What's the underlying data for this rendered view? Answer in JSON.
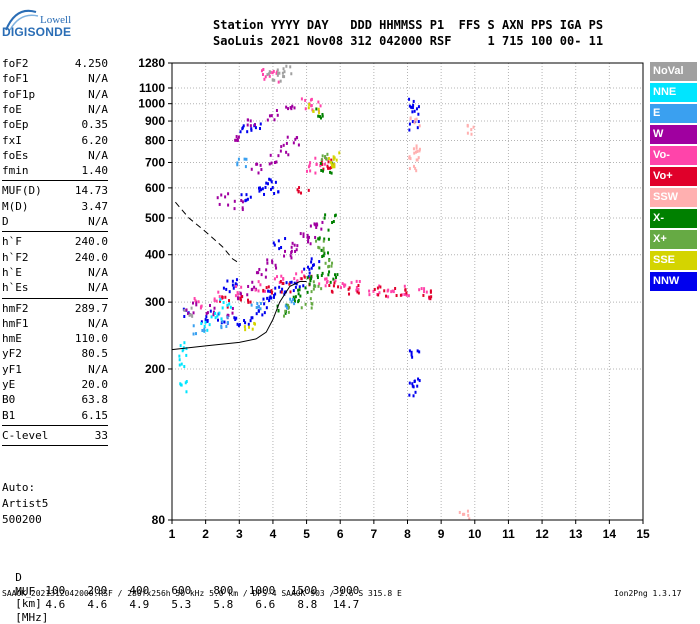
{
  "logo": {
    "line1": "Lowell",
    "line2": "DIGISONDE"
  },
  "header": {
    "line1": "Station YYYY DAY   DDD HHMMSS P1  FFS S AXN PPS IGA PS",
    "line2": "SaoLuis 2021 Nov08 312 042000 RSF     1 715 100 00- 11"
  },
  "params_group1": [
    {
      "label": "foF2",
      "value": "4.250"
    },
    {
      "label": "foF1",
      "value": "N/A"
    },
    {
      "label": "foF1p",
      "value": "N/A"
    },
    {
      "label": "foE",
      "value": "N/A"
    },
    {
      "label": "foEp",
      "value": "0.35"
    },
    {
      "label": "fxI",
      "value": "6.20"
    },
    {
      "label": "foEs",
      "value": "N/A"
    },
    {
      "label": "fmin",
      "value": "1.40"
    }
  ],
  "params_group2": [
    {
      "label": "MUF(D)",
      "value": "14.73"
    },
    {
      "label": "M(D)",
      "value": "3.47"
    },
    {
      "label": "D",
      "value": "N/A"
    }
  ],
  "params_group3": [
    {
      "label": "h`F",
      "value": "240.0"
    },
    {
      "label": "h`F2",
      "value": "240.0"
    },
    {
      "label": "h`E",
      "value": "N/A"
    },
    {
      "label": "h`Es",
      "value": "N/A"
    }
  ],
  "params_group4": [
    {
      "label": "hmF2",
      "value": "289.7"
    },
    {
      "label": "hmF1",
      "value": "N/A"
    },
    {
      "label": "hmE",
      "value": "110.0"
    },
    {
      "label": "yF2",
      "value": "80.5"
    },
    {
      "label": "yF1",
      "value": "N/A"
    },
    {
      "label": "yE",
      "value": "20.0"
    },
    {
      "label": "B0",
      "value": "63.8"
    },
    {
      "label": "B1",
      "value": "6.15"
    }
  ],
  "params_group5": [
    {
      "label": "C-level",
      "value": "33"
    }
  ],
  "auto_block": [
    "Auto:",
    "Artist5",
    "500200"
  ],
  "legend": [
    {
      "label": "NoVal",
      "color": "#a0a0a0"
    },
    {
      "label": "NNE",
      "color": "#00e5ff"
    },
    {
      "label": "E",
      "color": "#3aa0f0"
    },
    {
      "label": "W",
      "color": "#a000a0"
    },
    {
      "label": "Vo-",
      "color": "#ff44aa"
    },
    {
      "label": "Vo+",
      "color": "#e0002a"
    },
    {
      "label": "SSW",
      "color": "#ffb0b0"
    },
    {
      "label": "X-",
      "color": "#008000"
    },
    {
      "label": "X+",
      "color": "#66aa44"
    },
    {
      "label": "SSE",
      "color": "#d4d400"
    },
    {
      "label": "NNW",
      "color": "#0000ee"
    }
  ],
  "muf_table": {
    "d_label": "D",
    "d_values": [
      "100",
      "200",
      "400",
      "600",
      "800",
      "1000",
      "1500",
      "3000"
    ],
    "d_unit": "[km]",
    "muf_label": "MUF",
    "muf_values": [
      "4.6",
      "4.6",
      "4.9",
      "5.3",
      "5.8",
      "6.6",
      "8.8",
      "14.7"
    ],
    "muf_unit": "[MHz]"
  },
  "footer": {
    "left": "SAA0K_2021312042000.RSF / 280fx256h 50 kHz 5.0 km / DPS-4 SAA0K 903 / 2.6 S 315.8 E",
    "right": "Ion2Png 1.3.17"
  },
  "chart_data": {
    "type": "scatter",
    "title": "",
    "xlabel": "",
    "ylabel": "",
    "xlim": [
      1,
      15
    ],
    "ylim": [
      80,
      1280
    ],
    "y_scale": "log",
    "x_ticks": [
      1,
      2,
      3,
      4,
      5,
      6,
      7,
      8,
      9,
      10,
      11,
      12,
      13,
      14,
      15
    ],
    "y_ticks": [
      80,
      200,
      300,
      400,
      500,
      600,
      700,
      800,
      900,
      1000,
      1100,
      1280
    ],
    "grid": true,
    "legend_position": "right",
    "series": [
      {
        "name": "NNW",
        "color": "#0000ee",
        "points": [
          [
            1.5,
            280
          ],
          [
            2,
            275
          ],
          [
            2.5,
            270
          ],
          [
            3,
            265
          ],
          [
            3.3,
            270
          ],
          [
            3.6,
            285
          ],
          [
            3.8,
            300
          ],
          [
            4,
            310
          ],
          [
            4.2,
            320
          ],
          [
            4.5,
            330
          ],
          [
            4.8,
            340
          ],
          [
            5.1,
            360
          ],
          [
            5.3,
            380
          ],
          [
            3.2,
            560
          ],
          [
            3.6,
            580
          ],
          [
            3.8,
            620
          ],
          [
            4.1,
            600
          ],
          [
            3.2,
            850
          ],
          [
            3.5,
            880
          ],
          [
            8.2,
            1010
          ],
          [
            8.2,
            970
          ],
          [
            8.2,
            870
          ],
          [
            8.2,
            220
          ],
          [
            8.2,
            185
          ],
          [
            8.2,
            175
          ],
          [
            2.7,
            330
          ],
          [
            2.9,
            340
          ],
          [
            4.2,
            430
          ]
        ]
      },
      {
        "name": "W",
        "color": "#a000a0",
        "points": [
          [
            1.6,
            290
          ],
          [
            2.2,
            285
          ],
          [
            2.8,
            280
          ],
          [
            3.1,
            310
          ],
          [
            3.4,
            330
          ],
          [
            3.7,
            360
          ],
          [
            4,
            380
          ],
          [
            4.4,
            400
          ],
          [
            4.7,
            420
          ],
          [
            5,
            440
          ],
          [
            5.2,
            460
          ],
          [
            5.4,
            480
          ],
          [
            3.5,
            680
          ],
          [
            4,
            710
          ],
          [
            4.3,
            760
          ],
          [
            4.6,
            800
          ],
          [
            3,
            820
          ],
          [
            3.4,
            900
          ],
          [
            4,
            930
          ],
          [
            4.5,
            960
          ],
          [
            2.5,
            560
          ],
          [
            3,
            540
          ]
        ]
      },
      {
        "name": "Vo-",
        "color": "#ff44aa",
        "points": [
          [
            1.8,
            300
          ],
          [
            2.4,
            310
          ],
          [
            3,
            320
          ],
          [
            3.6,
            330
          ],
          [
            4.2,
            340
          ],
          [
            4.8,
            350
          ],
          [
            5.5,
            340
          ],
          [
            6,
            335
          ],
          [
            6.5,
            330
          ],
          [
            7,
            325
          ],
          [
            7.5,
            320
          ],
          [
            8,
            320
          ],
          [
            8.5,
            315
          ],
          [
            5.4,
            700
          ],
          [
            5.1,
            680
          ],
          [
            5.3,
            980
          ],
          [
            5,
            1000
          ],
          [
            3.8,
            1200
          ],
          [
            4,
            1180
          ]
        ]
      },
      {
        "name": "Vo+",
        "color": "#e0002a",
        "points": [
          [
            2.6,
            300
          ],
          [
            3.2,
            310
          ],
          [
            3.8,
            320
          ],
          [
            4.4,
            330
          ],
          [
            5,
            340
          ],
          [
            5.8,
            330
          ],
          [
            6.4,
            325
          ],
          [
            7.2,
            320
          ],
          [
            7.8,
            318
          ],
          [
            8.6,
            315
          ],
          [
            5.5,
            690
          ],
          [
            5.7,
            700
          ],
          [
            4.9,
            600
          ]
        ]
      },
      {
        "name": "SSW",
        "color": "#ffb0b0",
        "points": [
          [
            8.2,
            890
          ],
          [
            8.2,
            760
          ],
          [
            8.2,
            740
          ],
          [
            8.2,
            690
          ],
          [
            9.8,
            860
          ],
          [
            9.7,
            82
          ]
        ]
      },
      {
        "name": "X-",
        "color": "#008000",
        "points": [
          [
            4.3,
            290
          ],
          [
            4.6,
            300
          ],
          [
            4.9,
            320
          ],
          [
            5.2,
            340
          ],
          [
            5.5,
            360
          ],
          [
            5.6,
            400
          ],
          [
            5.5,
            450
          ],
          [
            5.7,
            500
          ],
          [
            5.6,
            680
          ],
          [
            5.4,
            940
          ],
          [
            5.8,
            350
          ]
        ]
      },
      {
        "name": "X+",
        "color": "#66aa44",
        "points": [
          [
            4.5,
            285
          ],
          [
            5,
            300
          ],
          [
            5.3,
            330
          ],
          [
            5.7,
            380
          ],
          [
            5.4,
            420
          ],
          [
            5.6,
            720
          ]
        ]
      },
      {
        "name": "SSE",
        "color": "#d4d400",
        "points": [
          [
            3.3,
            260
          ],
          [
            5.8,
            700
          ],
          [
            5.8,
            720
          ],
          [
            5.2,
            970
          ]
        ]
      },
      {
        "name": "NNE",
        "color": "#00e5ff",
        "points": [
          [
            1.3,
            230
          ],
          [
            1.35,
            210
          ],
          [
            1.4,
            180
          ],
          [
            2,
            260
          ],
          [
            2.3,
            280
          ],
          [
            2.6,
            300
          ]
        ]
      },
      {
        "name": "E",
        "color": "#3aa0f0",
        "points": [
          [
            1.8,
            255
          ],
          [
            2.5,
            265
          ],
          [
            3.5,
            290
          ],
          [
            4.5,
            300
          ],
          [
            3.1,
            700
          ]
        ]
      },
      {
        "name": "NoVal",
        "color": "#a0a0a0",
        "points": [
          [
            1.5,
            280
          ],
          [
            4,
            1190
          ],
          [
            4.4,
            1240
          ],
          [
            4.2,
            1180
          ]
        ]
      }
    ],
    "lines": [
      {
        "color": "#000000",
        "style": "dashed",
        "points": [
          [
            1.1,
            550
          ],
          [
            1.5,
            500
          ],
          [
            2,
            460
          ],
          [
            2.5,
            420
          ],
          [
            2.8,
            390
          ],
          [
            3,
            380
          ]
        ]
      },
      {
        "color": "#000000",
        "style": "solid",
        "points": [
          [
            1,
            225
          ],
          [
            2,
            230
          ],
          [
            3,
            235
          ],
          [
            3.5,
            240
          ],
          [
            3.8,
            250
          ],
          [
            4,
            270
          ],
          [
            4.2,
            300
          ],
          [
            4.5,
            330
          ],
          [
            4.8,
            340
          ],
          [
            5,
            340
          ]
        ]
      }
    ]
  }
}
